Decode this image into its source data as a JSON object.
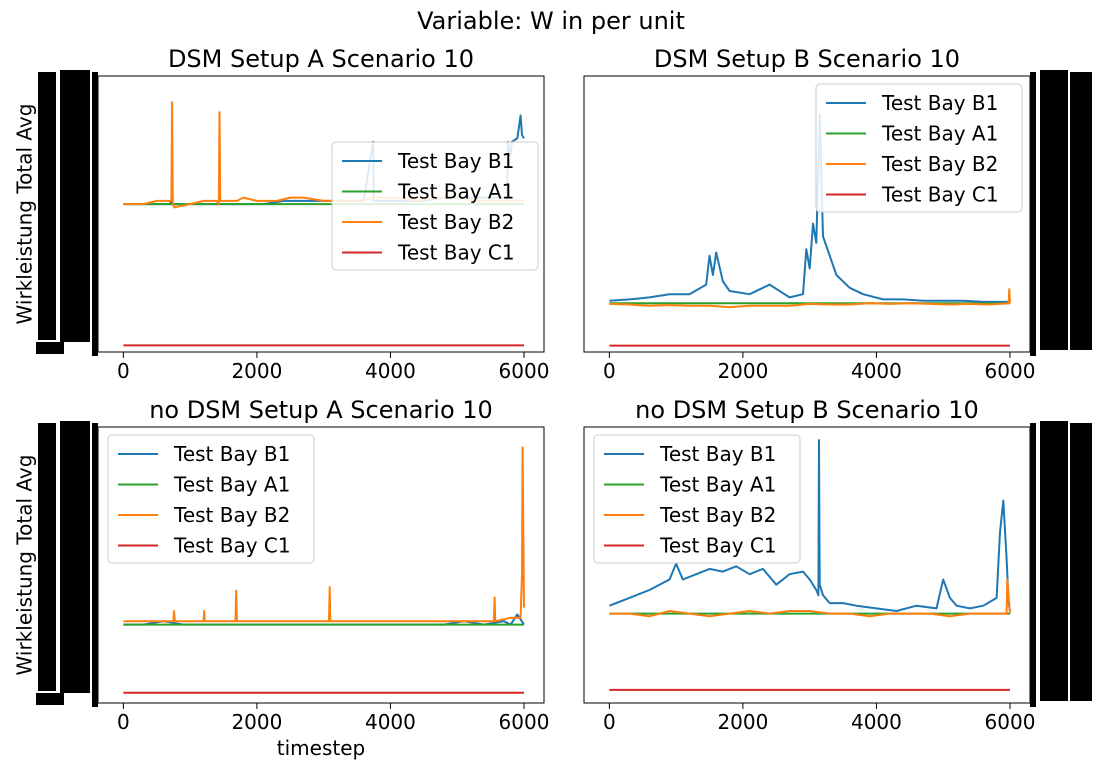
{
  "suptitle": "Variable: W in per unit",
  "colors": {
    "Test Bay B1": "#1f77b4",
    "Test Bay A1": "#2ca02c",
    "Test Bay B2": "#ff7f0e",
    "Test Bay C1": "#d62728",
    "frame": "#000000"
  },
  "chart_data": [
    {
      "type": "line",
      "title": "DSM Setup A Scenario 10",
      "ylabel": "Wirkleistung Total Avg",
      "xlabel": "",
      "xlim": [
        -380,
        6300
      ],
      "ylim": [
        -0.02,
        0.82
      ],
      "xticks": [
        0,
        2000,
        4000,
        6000
      ],
      "y_tick_labels_illegible": true,
      "legend": "center-right",
      "series": [
        {
          "name": "Test Bay B1",
          "x": [
            0,
            300,
            700,
            710,
            720,
            1000,
            1200,
            1420,
            1430,
            1800,
            2100,
            2400,
            2700,
            3000,
            3300,
            3600,
            3740,
            3750,
            3760,
            4200,
            4500,
            4800,
            5100,
            5400,
            5750,
            5760,
            5800,
            5820,
            5900,
            5950,
            5970,
            6000
          ],
          "values": [
            0.43,
            0.43,
            0.43,
            0.44,
            0.43,
            0.43,
            0.43,
            0.43,
            0.43,
            0.43,
            0.43,
            0.44,
            0.44,
            0.44,
            0.44,
            0.44,
            0.62,
            0.44,
            0.44,
            0.44,
            0.44,
            0.45,
            0.45,
            0.45,
            0.45,
            0.62,
            0.58,
            0.62,
            0.63,
            0.7,
            0.64,
            0.63
          ]
        },
        {
          "name": "Test Bay A1",
          "x": [
            0,
            6000
          ],
          "values": [
            0.43,
            0.43
          ]
        },
        {
          "name": "Test Bay B2",
          "x": [
            0,
            300,
            500,
            700,
            720,
            730,
            740,
            760,
            1000,
            1200,
            1400,
            1430,
            1440,
            1450,
            1500,
            1700,
            1800,
            2000,
            2300,
            2500,
            2700,
            3000,
            3200,
            3500,
            3800,
            4100,
            4400,
            4700,
            5000,
            5300,
            5600,
            5800,
            6000
          ],
          "values": [
            0.43,
            0.43,
            0.44,
            0.44,
            0.44,
            0.74,
            0.44,
            0.42,
            0.43,
            0.44,
            0.44,
            0.43,
            0.71,
            0.44,
            0.44,
            0.44,
            0.45,
            0.44,
            0.44,
            0.45,
            0.45,
            0.44,
            0.44,
            0.44,
            0.45,
            0.45,
            0.44,
            0.45,
            0.45,
            0.44,
            0.44,
            0.44,
            0.44
          ]
        },
        {
          "name": "Test Bay C1",
          "x": [
            0,
            6000
          ],
          "values": [
            0.0,
            0.0
          ]
        }
      ]
    },
    {
      "type": "line",
      "title": "DSM Setup B Scenario 10",
      "ylabel": "",
      "xlabel": "",
      "xlim": [
        -380,
        6300
      ],
      "ylim": [
        -0.1,
        4.2
      ],
      "xticks": [
        0,
        2000,
        4000,
        6000
      ],
      "y_tick_labels_illegible": true,
      "y_ticks_side": "right",
      "legend": "top-right",
      "series": [
        {
          "name": "Test Bay B1",
          "x": [
            0,
            300,
            600,
            900,
            1200,
            1450,
            1500,
            1550,
            1600,
            1700,
            1800,
            2100,
            2400,
            2700,
            2900,
            2950,
            3000,
            3050,
            3100,
            3150,
            3200,
            3300,
            3400,
            3600,
            3800,
            4100,
            4400,
            4700,
            5000,
            5300,
            5600,
            5900,
            6000
          ],
          "values": [
            0.7,
            0.72,
            0.75,
            0.8,
            0.8,
            0.95,
            1.4,
            1.1,
            1.45,
            1.0,
            0.85,
            0.8,
            0.95,
            0.75,
            0.8,
            1.5,
            1.2,
            1.9,
            1.6,
            3.6,
            1.7,
            1.4,
            1.1,
            0.9,
            0.8,
            0.72,
            0.72,
            0.7,
            0.7,
            0.7,
            0.68,
            0.68,
            0.68
          ]
        },
        {
          "name": "Test Bay A1",
          "x": [
            0,
            6000
          ],
          "values": [
            0.66,
            0.66
          ]
        },
        {
          "name": "Test Bay B2",
          "x": [
            0,
            300,
            600,
            900,
            1200,
            1500,
            1800,
            2100,
            2400,
            2700,
            3000,
            3300,
            3600,
            3900,
            4200,
            4500,
            4800,
            5100,
            5400,
            5700,
            5980,
            5990,
            6000
          ],
          "values": [
            0.65,
            0.64,
            0.62,
            0.63,
            0.62,
            0.62,
            0.6,
            0.62,
            0.62,
            0.62,
            0.65,
            0.64,
            0.64,
            0.66,
            0.65,
            0.66,
            0.65,
            0.64,
            0.65,
            0.64,
            0.66,
            0.88,
            0.66
          ]
        },
        {
          "name": "Test Bay C1",
          "x": [
            0,
            6000
          ],
          "values": [
            0.0,
            0.0
          ]
        }
      ]
    },
    {
      "type": "line",
      "title": "no DSM Setup A Scenario 10",
      "ylabel": "Wirkleistung Total Avg",
      "xlabel": "timestep",
      "xlim": [
        -380,
        6300
      ],
      "ylim": [
        -0.03,
        0.78
      ],
      "xticks": [
        0,
        2000,
        4000,
        6000
      ],
      "y_tick_labels_illegible": true,
      "legend": "top-left",
      "series": [
        {
          "name": "Test Bay B1",
          "x": [
            0,
            300,
            600,
            900,
            1200,
            1500,
            1800,
            2100,
            2400,
            2700,
            3000,
            3300,
            3600,
            3900,
            4200,
            4500,
            4800,
            5100,
            5400,
            5700,
            5800,
            5900,
            6000
          ],
          "values": [
            0.2,
            0.2,
            0.21,
            0.2,
            0.2,
            0.2,
            0.2,
            0.2,
            0.2,
            0.2,
            0.2,
            0.2,
            0.2,
            0.2,
            0.2,
            0.2,
            0.2,
            0.21,
            0.2,
            0.21,
            0.2,
            0.23,
            0.2
          ]
        },
        {
          "name": "Test Bay A1",
          "x": [
            0,
            6000
          ],
          "values": [
            0.2,
            0.2
          ]
        },
        {
          "name": "Test Bay B2",
          "x": [
            0,
            300,
            600,
            750,
            760,
            770,
            1000,
            1200,
            1210,
            1220,
            1500,
            1680,
            1690,
            1700,
            2000,
            2300,
            2600,
            2900,
            3080,
            3090,
            3100,
            3400,
            3700,
            4000,
            4300,
            4600,
            4900,
            5200,
            5500,
            5550,
            5560,
            5570,
            5800,
            5950,
            5970,
            5980,
            6000
          ],
          "values": [
            0.21,
            0.21,
            0.21,
            0.21,
            0.24,
            0.21,
            0.21,
            0.21,
            0.24,
            0.21,
            0.21,
            0.21,
            0.3,
            0.21,
            0.21,
            0.21,
            0.21,
            0.21,
            0.21,
            0.31,
            0.21,
            0.21,
            0.21,
            0.21,
            0.21,
            0.21,
            0.21,
            0.21,
            0.21,
            0.21,
            0.28,
            0.21,
            0.22,
            0.22,
            0.35,
            0.72,
            0.25
          ]
        },
        {
          "name": "Test Bay C1",
          "x": [
            0,
            6000
          ],
          "values": [
            0.0,
            0.0
          ]
        }
      ]
    },
    {
      "type": "line",
      "title": "no DSM Setup B Scenario 10",
      "ylabel": "",
      "xlabel": "",
      "xlim": [
        -380,
        6300
      ],
      "ylim": [
        -0.05,
        1.0
      ],
      "xticks": [
        0,
        2000,
        4000,
        6000
      ],
      "y_tick_labels_illegible": true,
      "y_ticks_side": "right",
      "legend": "top-left",
      "series": [
        {
          "name": "Test Bay B1",
          "x": [
            0,
            300,
            600,
            900,
            1000,
            1100,
            1300,
            1500,
            1700,
            1900,
            2100,
            2300,
            2500,
            2700,
            2900,
            3000,
            3100,
            3130,
            3140,
            3150,
            3200,
            3300,
            3500,
            3700,
            4000,
            4300,
            4600,
            4900,
            5000,
            5100,
            5200,
            5400,
            5600,
            5800,
            5850,
            5900,
            5950,
            5980,
            6000
          ],
          "values": [
            0.32,
            0.35,
            0.38,
            0.42,
            0.48,
            0.42,
            0.44,
            0.46,
            0.45,
            0.47,
            0.44,
            0.46,
            0.4,
            0.44,
            0.45,
            0.42,
            0.38,
            0.36,
            0.95,
            0.4,
            0.36,
            0.33,
            0.33,
            0.32,
            0.31,
            0.3,
            0.32,
            0.31,
            0.42,
            0.35,
            0.32,
            0.31,
            0.32,
            0.35,
            0.6,
            0.72,
            0.5,
            0.33,
            0.3
          ]
        },
        {
          "name": "Test Bay A1",
          "x": [
            0,
            6000
          ],
          "values": [
            0.29,
            0.29
          ]
        },
        {
          "name": "Test Bay B2",
          "x": [
            0,
            300,
            600,
            900,
            1200,
            1500,
            1800,
            2100,
            2400,
            2700,
            3000,
            3300,
            3600,
            3900,
            4200,
            4500,
            4800,
            5100,
            5400,
            5700,
            5900,
            5950,
            5960,
            6000
          ],
          "values": [
            0.29,
            0.29,
            0.28,
            0.3,
            0.29,
            0.28,
            0.29,
            0.3,
            0.29,
            0.3,
            0.3,
            0.29,
            0.29,
            0.28,
            0.29,
            0.29,
            0.29,
            0.28,
            0.29,
            0.29,
            0.29,
            0.29,
            0.42,
            0.29
          ]
        },
        {
          "name": "Test Bay C1",
          "x": [
            0,
            6000
          ],
          "values": [
            0.0,
            0.0
          ]
        }
      ]
    }
  ]
}
